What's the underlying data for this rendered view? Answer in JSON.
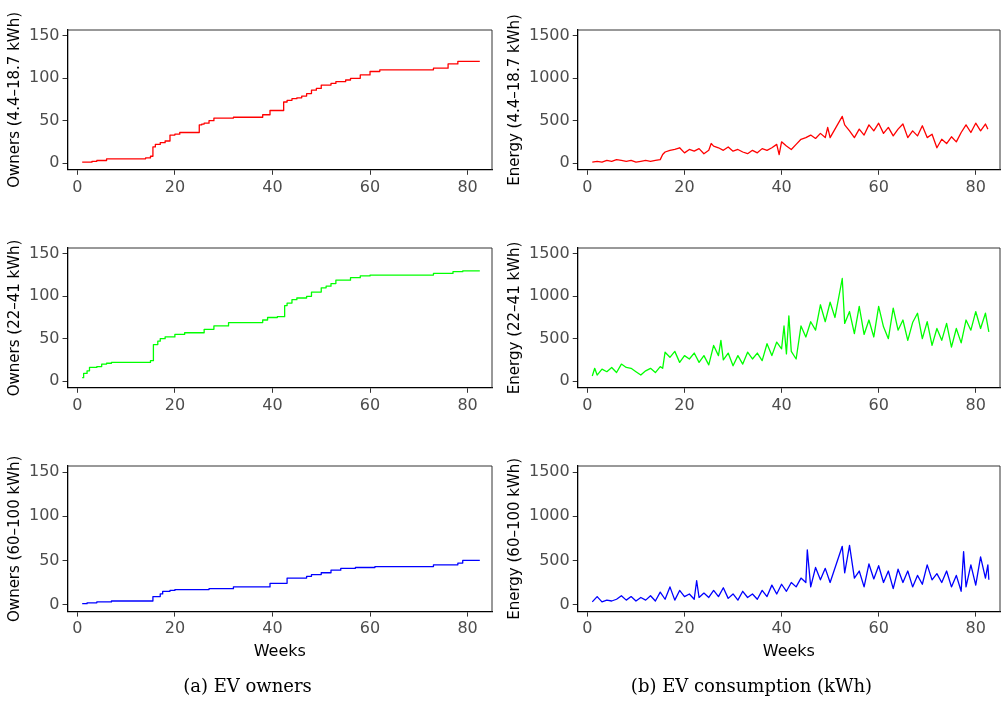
{
  "chart_data": [
    {
      "type": "step",
      "ylabel": "Owners (4.4–18.7 kWh)",
      "xlim": [
        -2,
        85
      ],
      "ylim": [
        -8,
        157
      ],
      "xticks": [
        0,
        20,
        40,
        60,
        80
      ],
      "yticks": [
        0,
        50,
        100,
        150
      ],
      "series": [
        {
          "color": "#ff0000",
          "x": [
            1,
            3,
            4,
            6,
            14,
            15,
            15.5,
            16,
            17,
            18,
            19,
            20,
            21,
            25,
            25.5,
            26,
            27,
            28,
            32,
            38,
            39.5,
            42.3,
            43,
            44,
            45,
            46,
            47,
            48,
            49,
            50,
            52,
            53,
            55,
            56,
            58,
            60,
            62,
            73,
            76,
            78,
            82.5
          ],
          "values": [
            1,
            2,
            3,
            5,
            6,
            8,
            19,
            22,
            24,
            26,
            33,
            34,
            36,
            45,
            46,
            47,
            50,
            53,
            54,
            57,
            62,
            72,
            74,
            76,
            77,
            79,
            82,
            86,
            88,
            92,
            94,
            96,
            98,
            100,
            104,
            108,
            110,
            112,
            117,
            120,
            120
          ]
        }
      ]
    },
    {
      "type": "line",
      "ylabel": "Energy (4.4–18.7 kWh)",
      "xlim": [
        -2,
        85
      ],
      "ylim": [
        -80,
        1570
      ],
      "xticks": [
        0,
        20,
        40,
        60,
        80
      ],
      "yticks": [
        0,
        500,
        1000,
        1500
      ],
      "series": [
        {
          "color": "#ff0000",
          "x": [
            1,
            2,
            3,
            4,
            5,
            6,
            7,
            8,
            9,
            10,
            11,
            12,
            13,
            14,
            15,
            15.5,
            16,
            17,
            18,
            19,
            20,
            21,
            22,
            23,
            24,
            25,
            25.5,
            26,
            27,
            28,
            29,
            30,
            31,
            32,
            33,
            34,
            35,
            36,
            37,
            38,
            39,
            39.5,
            40,
            41,
            42,
            43,
            44,
            45,
            46,
            47,
            48,
            49,
            49.5,
            50,
            52.5,
            53,
            54,
            55,
            56,
            57,
            58,
            59,
            60,
            61,
            62,
            63,
            64,
            65,
            66,
            67,
            68,
            69,
            70,
            71,
            72,
            73,
            74,
            75,
            76,
            77,
            78,
            79,
            80,
            81,
            82,
            82.5
          ],
          "values": [
            10,
            20,
            10,
            30,
            20,
            40,
            30,
            20,
            30,
            10,
            20,
            30,
            20,
            30,
            40,
            100,
            130,
            150,
            160,
            180,
            120,
            160,
            140,
            170,
            110,
            150,
            230,
            200,
            180,
            150,
            190,
            140,
            160,
            130,
            110,
            150,
            120,
            170,
            150,
            180,
            220,
            100,
            250,
            200,
            160,
            220,
            280,
            300,
            330,
            290,
            350,
            300,
            420,
            300,
            550,
            450,
            380,
            300,
            400,
            330,
            450,
            380,
            470,
            350,
            420,
            320,
            400,
            460,
            300,
            380,
            320,
            440,
            300,
            340,
            180,
            280,
            230,
            310,
            250,
            360,
            450,
            360,
            470,
            380,
            460,
            400
          ]
        }
      ]
    },
    {
      "type": "step",
      "ylabel": "Owners (22–41 kWh)",
      "xlim": [
        -2,
        85
      ],
      "ylim": [
        -8,
        157
      ],
      "xticks": [
        0,
        20,
        40,
        60,
        80
      ],
      "yticks": [
        0,
        50,
        100,
        150
      ],
      "series": [
        {
          "color": "#00ff00",
          "x": [
            1,
            1.3,
            2,
            2.5,
            4,
            5,
            6,
            7,
            14,
            15,
            15.6,
            16.5,
            17,
            18,
            20,
            22,
            26,
            28,
            31,
            38,
            39,
            41,
            42.5,
            43,
            44,
            45,
            47,
            48,
            50,
            51,
            52,
            53,
            56,
            58,
            60,
            73,
            77,
            79,
            82.5
          ],
          "values": [
            4,
            9,
            12,
            16,
            17,
            20,
            21,
            22,
            22,
            24,
            43,
            47,
            50,
            52,
            55,
            57,
            61,
            65,
            69,
            72,
            75,
            76,
            89,
            92,
            96,
            98,
            100,
            105,
            110,
            112,
            115,
            119,
            122,
            124,
            125,
            127,
            129,
            130,
            130
          ]
        }
      ]
    },
    {
      "type": "line",
      "ylabel": "Energy (22–41 kWh)",
      "xlim": [
        -2,
        85
      ],
      "ylim": [
        -80,
        1570
      ],
      "xticks": [
        0,
        20,
        40,
        60,
        80
      ],
      "yticks": [
        0,
        500,
        1000,
        1500
      ],
      "series": [
        {
          "color": "#00ff00",
          "x": [
            1,
            1.5,
            2,
            3,
            4,
            5,
            6,
            7,
            8,
            9,
            10,
            11,
            12,
            13,
            14,
            15,
            15.5,
            16,
            17,
            18,
            19,
            20,
            21,
            22,
            23,
            24,
            25,
            26,
            27,
            27.5,
            28,
            29,
            30,
            31,
            32,
            33,
            34,
            35,
            36,
            37,
            38,
            39,
            40,
            40.5,
            41,
            41.5,
            42,
            43,
            44,
            45,
            46,
            47,
            48,
            49,
            50,
            51,
            52.5,
            53,
            54,
            55,
            56,
            57,
            58,
            59,
            60,
            61,
            62,
            63,
            64,
            65,
            66,
            67,
            68,
            69,
            70,
            71,
            72,
            73,
            74,
            75,
            76,
            77,
            78,
            79,
            80,
            81,
            82,
            82.7
          ],
          "values": [
            60,
            150,
            70,
            140,
            110,
            160,
            100,
            200,
            160,
            150,
            110,
            70,
            120,
            150,
            100,
            170,
            150,
            340,
            280,
            350,
            220,
            300,
            260,
            330,
            220,
            300,
            190,
            420,
            300,
            480,
            250,
            330,
            180,
            300,
            200,
            340,
            260,
            330,
            240,
            440,
            300,
            460,
            380,
            650,
            320,
            770,
            350,
            260,
            650,
            520,
            700,
            600,
            900,
            700,
            930,
            750,
            1210,
            680,
            820,
            560,
            880,
            550,
            720,
            520,
            880,
            640,
            500,
            860,
            600,
            720,
            480,
            690,
            800,
            500,
            700,
            420,
            620,
            480,
            680,
            400,
            620,
            450,
            720,
            600,
            820,
            620,
            800,
            580
          ]
        }
      ]
    },
    {
      "type": "step",
      "ylabel": "Owners (60–100 kWh)",
      "xlabel": "Weeks",
      "xlim": [
        -2,
        85
      ],
      "ylim": [
        -8,
        157
      ],
      "xticks": [
        0,
        20,
        40,
        60,
        80
      ],
      "yticks": [
        0,
        50,
        100,
        150
      ],
      "annotations": [
        "(a) EV owners"
      ],
      "series": [
        {
          "color": "#0000ff",
          "x": [
            1,
            2,
            4,
            7,
            15.5,
            17,
            17.5,
            19,
            20,
            27,
            32,
            39.5,
            43,
            47,
            48,
            50,
            52,
            54,
            57,
            61,
            73,
            78,
            79,
            82.5
          ],
          "values": [
            1,
            2,
            3,
            4,
            9,
            12,
            15,
            16,
            17,
            18,
            20,
            24,
            30,
            32,
            34,
            36,
            39,
            41,
            42,
            43,
            45,
            47,
            50,
            50
          ]
        }
      ]
    },
    {
      "type": "line",
      "ylabel": "Energy (60–100 kWh)",
      "xlabel": "Weeks",
      "xlim": [
        -2,
        85
      ],
      "ylim": [
        -80,
        1570
      ],
      "xticks": [
        0,
        20,
        40,
        60,
        80
      ],
      "yticks": [
        0,
        500,
        1000,
        1500
      ],
      "annotations": [
        "(b) EV consumption (kWh)"
      ],
      "series": [
        {
          "color": "#0000ff",
          "x": [
            1,
            2,
            3,
            4,
            5,
            6,
            7,
            8,
            9,
            10,
            11,
            12,
            13,
            14,
            15,
            16,
            17,
            18,
            19,
            20,
            21,
            22,
            22.5,
            23,
            24,
            25,
            26,
            27,
            28,
            29,
            30,
            31,
            32,
            33,
            34,
            35,
            36,
            37,
            38,
            39,
            40,
            41,
            42,
            43,
            44,
            45,
            45.3,
            46,
            47,
            48,
            49,
            50,
            52.5,
            53,
            54,
            55,
            56,
            57,
            58,
            59,
            60,
            61,
            62,
            63,
            64,
            65,
            66,
            67,
            68,
            69,
            70,
            71,
            72,
            73,
            74,
            75,
            76,
            77,
            77.5,
            78,
            79,
            80,
            81,
            82,
            82.5,
            82.7
          ],
          "values": [
            30,
            90,
            30,
            50,
            40,
            60,
            100,
            50,
            90,
            40,
            80,
            50,
            100,
            40,
            140,
            60,
            200,
            50,
            160,
            90,
            120,
            60,
            270,
            80,
            130,
            80,
            160,
            90,
            190,
            70,
            120,
            50,
            150,
            80,
            120,
            60,
            160,
            90,
            220,
            120,
            230,
            150,
            250,
            200,
            300,
            250,
            620,
            200,
            420,
            280,
            410,
            250,
            660,
            360,
            670,
            300,
            380,
            200,
            460,
            290,
            440,
            250,
            380,
            180,
            400,
            250,
            380,
            200,
            330,
            230,
            450,
            280,
            350,
            250,
            380,
            200,
            330,
            150,
            600,
            200,
            450,
            220,
            540,
            300,
            450,
            280
          ]
        }
      ]
    }
  ]
}
